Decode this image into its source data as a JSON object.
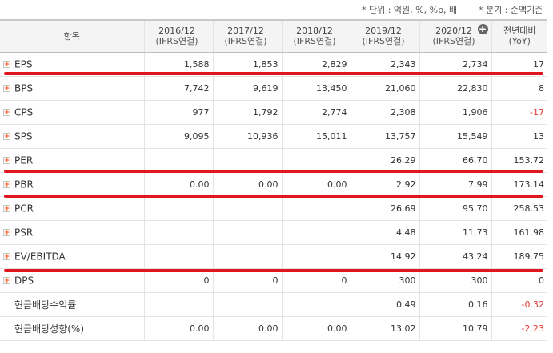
{
  "notes": {
    "unit": "* 단위 : 억원, %, %p, 배",
    "basis": "* 분기 : 순액기준"
  },
  "header": {
    "item": "항목",
    "periods": [
      {
        "year": "2016/12",
        "sub": "(IFRS연결)"
      },
      {
        "year": "2017/12",
        "sub": "(IFRS연결)"
      },
      {
        "year": "2018/12",
        "sub": "(IFRS연결)"
      },
      {
        "year": "2019/12",
        "sub": "(IFRS연결)"
      },
      {
        "year": "2020/12",
        "sub": "(IFRS연결)"
      }
    ],
    "yoy": "전년대비",
    "yoy_sub": "(YoY)",
    "add_icon": "+"
  },
  "rows": [
    {
      "label": "EPS",
      "expand": true,
      "values": [
        "1,588",
        "1,853",
        "2,829",
        "2,343",
        "2,734"
      ],
      "yoy": "17"
    },
    {
      "label": "BPS",
      "expand": true,
      "values": [
        "7,742",
        "9,619",
        "13,450",
        "21,060",
        "22,830"
      ],
      "yoy": "8"
    },
    {
      "label": "CPS",
      "expand": true,
      "values": [
        "977",
        "1,792",
        "2,774",
        "2,308",
        "1,906"
      ],
      "yoy": "-17"
    },
    {
      "label": "SPS",
      "expand": true,
      "values": [
        "9,095",
        "10,936",
        "15,011",
        "13,757",
        "15,549"
      ],
      "yoy": "13"
    },
    {
      "label": "PER",
      "expand": true,
      "values": [
        "",
        "",
        "",
        "26.29",
        "66.70"
      ],
      "yoy": "153.72"
    },
    {
      "label": "PBR",
      "expand": true,
      "values": [
        "0.00",
        "0.00",
        "0.00",
        "2.92",
        "7.99"
      ],
      "yoy": "173.14"
    },
    {
      "label": "PCR",
      "expand": true,
      "values": [
        "",
        "",
        "",
        "26.69",
        "95.70"
      ],
      "yoy": "258.53"
    },
    {
      "label": "PSR",
      "expand": true,
      "values": [
        "",
        "",
        "",
        "4.48",
        "11.73"
      ],
      "yoy": "161.98"
    },
    {
      "label": "EV/EBITDA",
      "expand": true,
      "values": [
        "",
        "",
        "",
        "14.92",
        "43.24"
      ],
      "yoy": "189.75"
    },
    {
      "label": "DPS",
      "expand": true,
      "values": [
        "0",
        "0",
        "0",
        "300",
        "300"
      ],
      "yoy": "0"
    },
    {
      "label": "현금배당수익률",
      "expand": false,
      "values": [
        "",
        "",
        "",
        "0.49",
        "0.16"
      ],
      "yoy": "-0.32"
    },
    {
      "label": "현금배당성향(%)",
      "expand": false,
      "values": [
        "0.00",
        "0.00",
        "0.00",
        "13.02",
        "10.79"
      ],
      "yoy": "-2.23"
    }
  ],
  "colors": {
    "negative": "#e53935",
    "highlight": "#e0161d",
    "expand_plus": "#ff5a1f"
  }
}
